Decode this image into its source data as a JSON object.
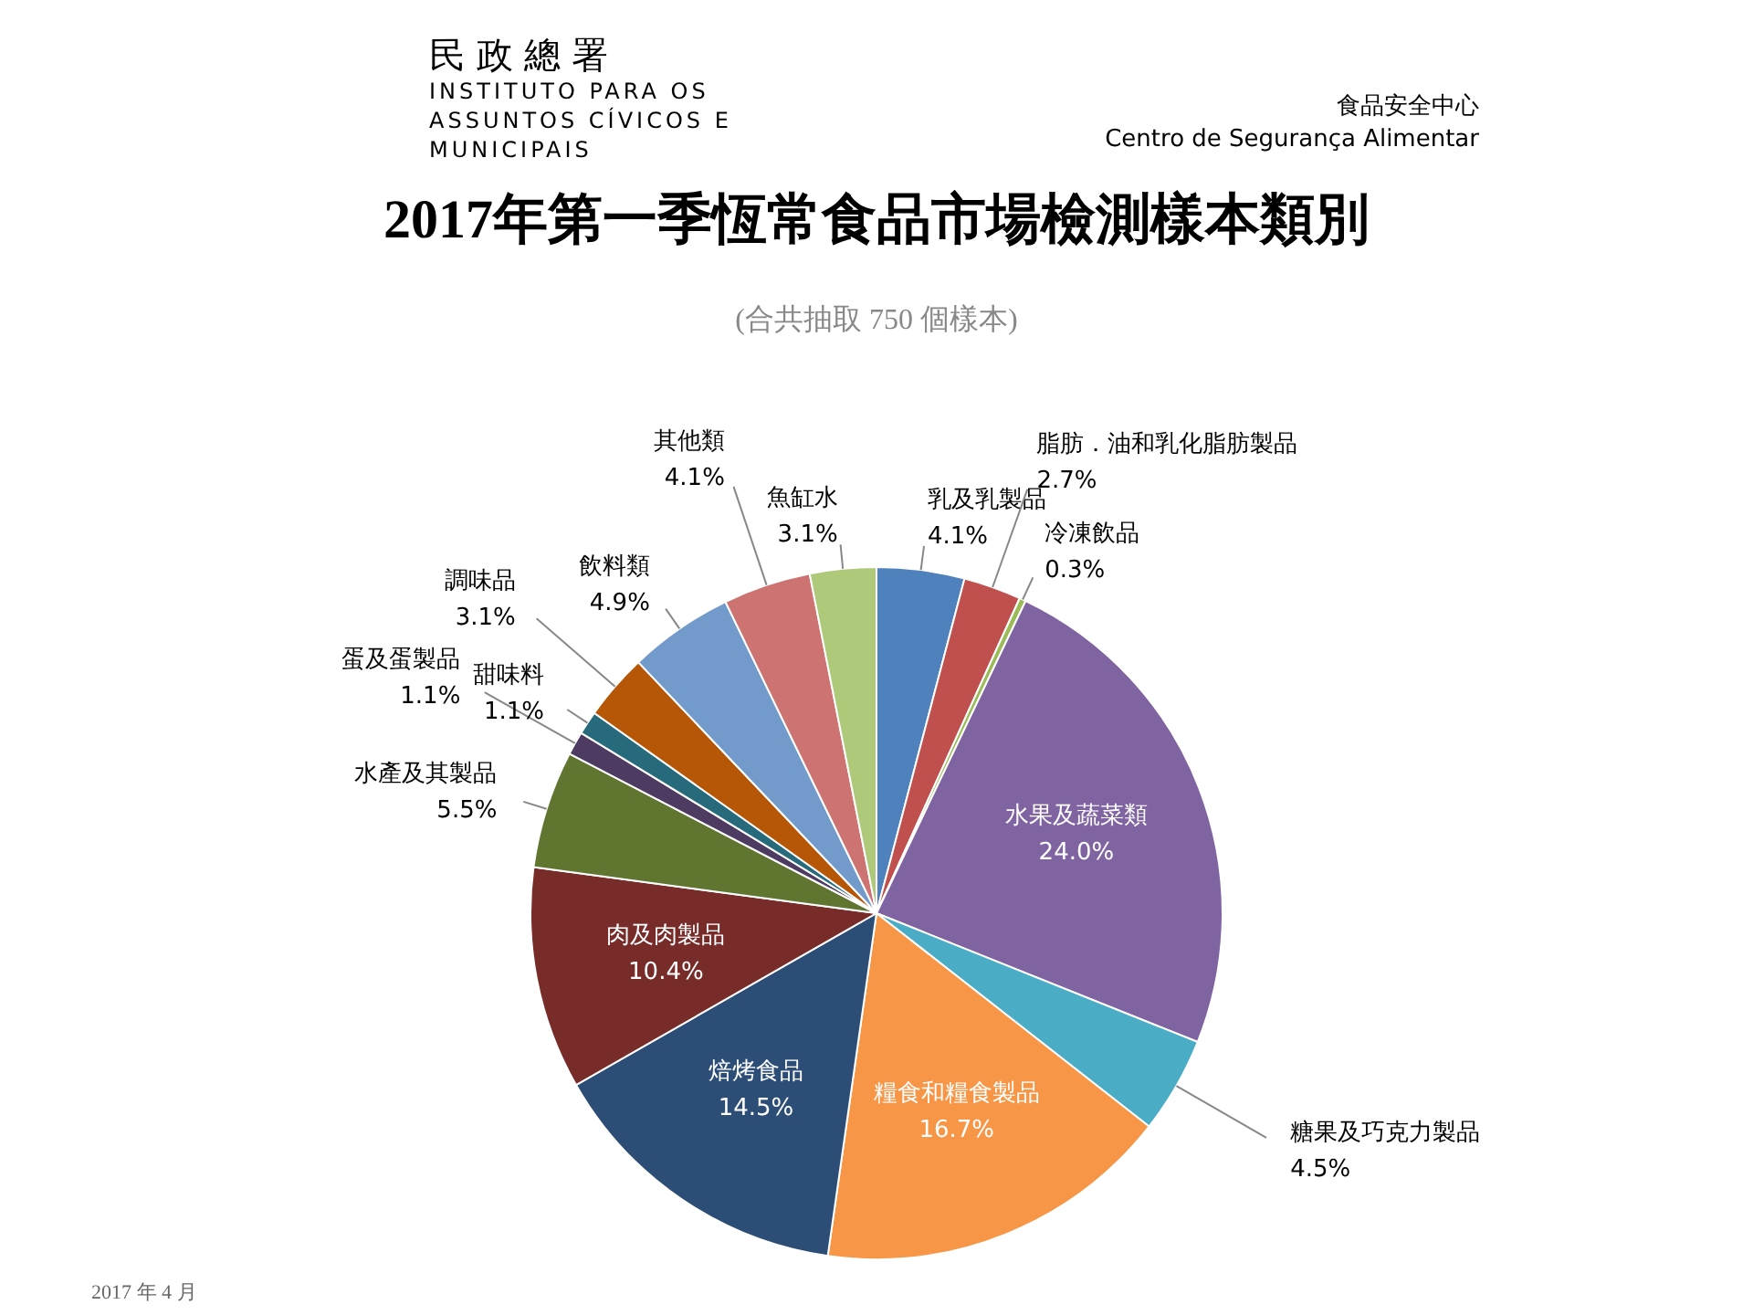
{
  "chart_data": {
    "type": "pie",
    "title": "2017年第一季恆常食品市場檢測樣本類別",
    "subtitle": "(合共抽取 750 個樣本)",
    "annotations": [
      "民政總署",
      "INSTITUTO PARA OS ASSUNTOS CÍVICOS E MUNICIPAIS",
      "食品安全中心",
      "Centro de Segurança Alimentar",
      "2017 年 4 月"
    ],
    "categories": [
      "乳及乳製品",
      "脂肪．油和乳化脂肪製品",
      "冷凍飲品",
      "水果及蔬菜類",
      "糖果及巧克力製品",
      "糧食和糧食製品",
      "焙烤食品",
      "肉及肉製品",
      "水產及其製品",
      "蛋及蛋製品",
      "甜味料",
      "調味品",
      "飲料類",
      "其他類",
      "魚缸水"
    ],
    "values": [
      4.1,
      2.7,
      0.3,
      24.0,
      4.5,
      16.7,
      14.5,
      10.4,
      5.5,
      1.1,
      1.1,
      3.1,
      4.9,
      4.1,
      3.1
    ],
    "value_labels": [
      "4.1%",
      "2.7%",
      "0.3%",
      "24.0%",
      "4.5%",
      "16.7%",
      "14.5%",
      "10.4%",
      "5.5%",
      "1.1%",
      "1.1%",
      "3.1%",
      "4.9%",
      "4.1%",
      "3.1%"
    ],
    "colors": [
      "#4f81bd",
      "#c0504d",
      "#9bbb59",
      "#8064a2",
      "#4bacc6",
      "#f79646",
      "#2c4d75",
      "#772c2a",
      "#5f7530",
      "#4d3b62",
      "#276a7c",
      "#b65708",
      "#729aca",
      "#cd7371",
      "#afc97a"
    ],
    "legend": false
  }
}
